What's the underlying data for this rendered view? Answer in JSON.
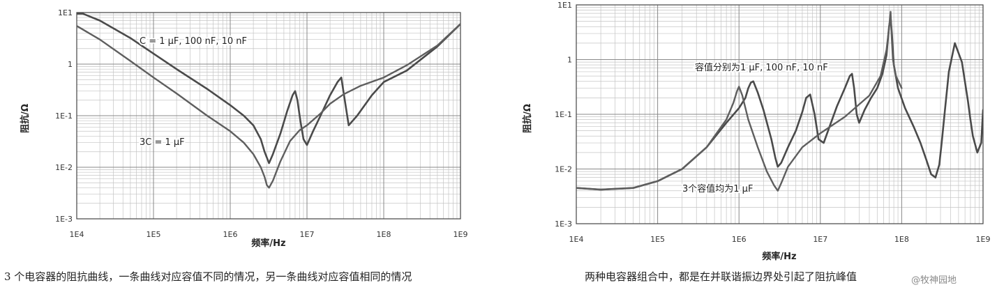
{
  "chart_data": [
    {
      "type": "line",
      "xlabel": "频率/Hz",
      "ylabel": "阻抗/Ω",
      "x_scale": "log",
      "y_scale": "log",
      "xlim": [
        10000,
        1000000000
      ],
      "ylim": [
        0.001,
        10
      ],
      "x_ticks": [
        {
          "value": 10000,
          "label": "1E4"
        },
        {
          "value": 100000,
          "label": "1E5"
        },
        {
          "value": 1000000,
          "label": "1E6"
        },
        {
          "value": 10000000,
          "label": "1E7"
        },
        {
          "value": 100000000,
          "label": "1E8"
        },
        {
          "value": 1000000000,
          "label": "1E9"
        }
      ],
      "y_ticks": [
        {
          "value": 10,
          "label": "1E1"
        },
        {
          "value": 1,
          "label": "1"
        },
        {
          "value": 0.1,
          "label": "1E-1"
        },
        {
          "value": 0.01,
          "label": "1E-2"
        },
        {
          "value": 0.001,
          "label": "1E-3"
        }
      ],
      "grid": true,
      "series": [
        {
          "color": "#4a4a4a",
          "x": [
            10000,
            12000,
            20000,
            50000,
            100000,
            200000,
            500000,
            1000000,
            1500000,
            2000000,
            2500000,
            2800000,
            3200000,
            3600000,
            4500000,
            5500000,
            6500000,
            7000000,
            7500000,
            8200000,
            9000000,
            10000000,
            12000000,
            15000000,
            20000000,
            25000000,
            28000000,
            30000000,
            35000000,
            45000000,
            70000000,
            100000000,
            200000000,
            500000000,
            1000000000
          ],
          "y": [
            9.5,
            9.5,
            7,
            3.2,
            1.6,
            0.8,
            0.33,
            0.16,
            0.1,
            0.065,
            0.035,
            0.02,
            0.012,
            0.018,
            0.045,
            0.12,
            0.25,
            0.3,
            0.2,
            0.08,
            0.035,
            0.027,
            0.05,
            0.1,
            0.25,
            0.45,
            0.55,
            0.28,
            0.065,
            0.1,
            0.25,
            0.45,
            0.75,
            2.2,
            6
          ]
        },
        {
          "color": "#5e5e5e",
          "x": [
            10000,
            20000,
            50000,
            100000,
            200000,
            500000,
            1000000,
            1500000,
            2000000,
            2500000,
            2800000,
            3000000,
            3200000,
            3600000,
            4500000,
            6000000,
            8000000,
            10000000,
            15000000,
            20000000,
            30000000,
            50000000,
            100000000,
            200000000,
            500000000,
            1000000000
          ],
          "y": [
            5.5,
            3,
            1.15,
            0.55,
            0.27,
            0.1,
            0.05,
            0.03,
            0.018,
            0.01,
            0.0065,
            0.0045,
            0.004,
            0.0055,
            0.013,
            0.032,
            0.052,
            0.065,
            0.11,
            0.17,
            0.26,
            0.38,
            0.55,
            0.95,
            2.3,
            6
          ]
        }
      ],
      "annotations": [
        {
          "text": "C = 1 μF, 100 nF, 10 nF",
          "x": 10000,
          "y": 0
        },
        {
          "text": "3C = 1 μF",
          "x": 0,
          "y": 0
        }
      ]
    },
    {
      "type": "line",
      "xlabel": "频率/Hz",
      "ylabel": "阻抗/Ω",
      "x_scale": "log",
      "y_scale": "log",
      "xlim": [
        10000,
        1000000000
      ],
      "ylim": [
        0.001,
        10
      ],
      "x_ticks": [
        {
          "value": 10000,
          "label": "1E4"
        },
        {
          "value": 100000,
          "label": "1E5"
        },
        {
          "value": 1000000,
          "label": "1E6"
        },
        {
          "value": 10000000,
          "label": "1E7"
        },
        {
          "value": 100000000,
          "label": "1E8"
        },
        {
          "value": 1000000000,
          "label": "1E9"
        }
      ],
      "y_ticks": [
        {
          "value": 10,
          "label": "1E1"
        },
        {
          "value": 1,
          "label": "1"
        },
        {
          "value": 0.1,
          "label": "1E-1"
        },
        {
          "value": 0.01,
          "label": "1E-2"
        },
        {
          "value": 0.001,
          "label": "1E-3"
        }
      ],
      "grid": true,
      "series": [
        {
          "color": "#4a4a4a",
          "x": [
            10000,
            20000,
            50000,
            100000,
            200000,
            400000,
            700000,
            1000000,
            1200000,
            1300000,
            1400000,
            1500000,
            1700000,
            2000000,
            2500000,
            2800000,
            3000000,
            3300000,
            4000000,
            5000000,
            6000000,
            6700000,
            7500000,
            8500000,
            9500000,
            11000000,
            13000000,
            16000000,
            20000000,
            23000000,
            24500000,
            26000000,
            28000000,
            30000000,
            35000000,
            42000000,
            50000000,
            58000000,
            65000000,
            70000000,
            73000000,
            76000000,
            80000000,
            90000000,
            110000000,
            140000000,
            170000000,
            200000000,
            230000000,
            260000000,
            290000000,
            310000000,
            340000000,
            380000000,
            450000000,
            550000000,
            650000000,
            700000000,
            750000000,
            850000000,
            950000000,
            1000000000
          ],
          "y": [
            0.0045,
            0.0042,
            0.0045,
            0.006,
            0.01,
            0.025,
            0.07,
            0.13,
            0.2,
            0.3,
            0.38,
            0.4,
            0.25,
            0.12,
            0.035,
            0.016,
            0.011,
            0.013,
            0.025,
            0.05,
            0.11,
            0.2,
            0.23,
            0.1,
            0.035,
            0.03,
            0.06,
            0.14,
            0.3,
            0.5,
            0.55,
            0.3,
            0.1,
            0.07,
            0.12,
            0.2,
            0.3,
            0.55,
            1.2,
            4,
            6,
            2.8,
            0.8,
            0.3,
            0.13,
            0.06,
            0.03,
            0.015,
            0.008,
            0.007,
            0.012,
            0.03,
            0.12,
            0.6,
            2,
            0.9,
            0.18,
            0.08,
            0.04,
            0.02,
            0.03,
            0.12
          ]
        },
        {
          "color": "#5e5e5e",
          "x": [
            10000,
            20000,
            50000,
            100000,
            200000,
            400000,
            700000,
            850000,
            950000,
            1000000,
            1100000,
            1300000,
            1700000,
            2200000,
            2700000,
            3000000,
            3300000,
            4000000,
            6000000,
            10000000,
            20000000,
            40000000,
            55000000,
            65000000,
            70000000,
            73000000,
            75000000,
            78000000,
            85000000,
            100000000
          ],
          "y": [
            0.0045,
            0.0042,
            0.0045,
            0.006,
            0.01,
            0.025,
            0.08,
            0.16,
            0.27,
            0.32,
            0.22,
            0.08,
            0.025,
            0.009,
            0.005,
            0.004,
            0.0055,
            0.011,
            0.025,
            0.045,
            0.09,
            0.22,
            0.5,
            1.5,
            3.8,
            7.5,
            3,
            1,
            0.5,
            0.3
          ]
        }
      ],
      "annotations": [
        {
          "text": "容值分别为1 μF, 100 nF, 10 nF"
        },
        {
          "text": "3个容值均为1 μF"
        }
      ]
    }
  ],
  "captions": {
    "left": "3 个电容器的阻抗曲线，一条曲线对应容值不同的情况，另一条曲线对应容值相同的情况",
    "right": "两种电容器组合中，都是在并联谐振边界处引起了阻抗峰值"
  },
  "watermark": "@牧神园地"
}
